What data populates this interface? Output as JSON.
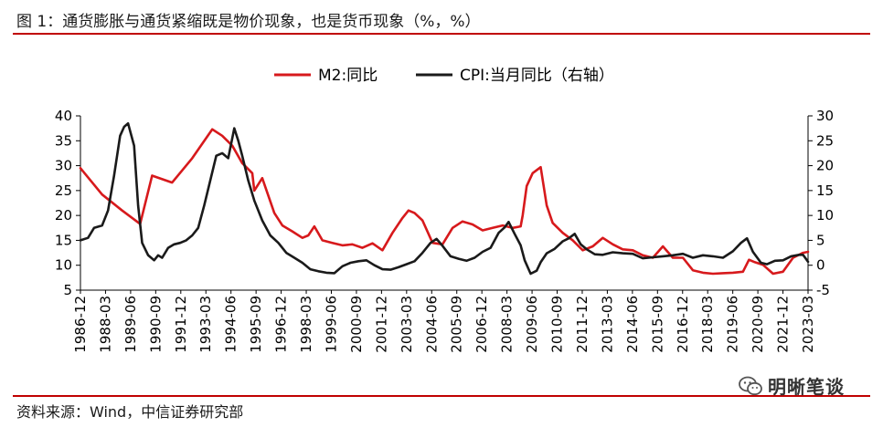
{
  "header": {
    "title": "图 1：通货膨胀与通货紧缩既是物价现象，也是货币现象（%，%）"
  },
  "footer": {
    "source": "资料来源：Wind，中信证券研究部",
    "watermark": "明晰笔谈",
    "watermark_icon": "wechat-icon"
  },
  "chart_data": {
    "type": "line",
    "y_left_lim": [
      5,
      40
    ],
    "y_right_lim": [
      -5,
      30
    ],
    "y_left_ticks": [
      "5",
      "10",
      "15",
      "20",
      "25",
      "30",
      "35",
      "40"
    ],
    "y_right_ticks": [
      "-5",
      "0",
      "5",
      "10",
      "15",
      "20",
      "25",
      "30"
    ],
    "x_tick_labels": [
      "1986-12",
      "1988-03",
      "1989-06",
      "1990-09",
      "1991-12",
      "1993-03",
      "1994-06",
      "1995-09",
      "1996-12",
      "1998-03",
      "1999-06",
      "2000-09",
      "2001-12",
      "2003-03",
      "2004-06",
      "2005-09",
      "2006-12",
      "2008-03",
      "2009-06",
      "2010-09",
      "2011-12",
      "2013-03",
      "2014-06",
      "2015-09",
      "2016-12",
      "2018-03",
      "2019-06",
      "2020-09",
      "2021-12",
      "2023-03"
    ],
    "x_range": [
      1986.92,
      2023.25
    ],
    "legend": {
      "placement": "top-center"
    },
    "series": [
      {
        "name": "M2:同比",
        "axis": "left",
        "color": "#d7191c",
        "x": [
          1986.92,
          1988.0,
          1989.0,
          1989.9,
          1990.5,
          1991.5,
          1992.5,
          1993.5,
          1994.0,
          1994.5,
          1995.0,
          1995.5,
          1995.6,
          1996.0,
          1996.3,
          1996.6,
          1997.0,
          1997.5,
          1998.0,
          1998.3,
          1998.6,
          1999.0,
          1999.5,
          2000.0,
          2000.5,
          2001.0,
          2001.5,
          2002.0,
          2002.5,
          2003.0,
          2003.3,
          2003.6,
          2004.0,
          2004.5,
          2005.0,
          2005.5,
          2006.0,
          2006.5,
          2007.0,
          2007.5,
          2008.0,
          2008.5,
          2008.9,
          2009.0,
          2009.2,
          2009.5,
          2009.9,
          2010.2,
          2010.5,
          2011.0,
          2011.5,
          2012.0,
          2012.5,
          2013.0,
          2013.5,
          2014.0,
          2014.5,
          2015.0,
          2015.5,
          2016.0,
          2016.5,
          2017.0,
          2017.5,
          2018.0,
          2018.5,
          2019.0,
          2019.5,
          2020.0,
          2020.3,
          2020.6,
          2021.0,
          2021.5,
          2022.0,
          2022.5,
          2023.0,
          2023.25
        ],
        "values": [
          29.5,
          24.2,
          21.0,
          18.3,
          28.0,
          26.6,
          31.5,
          37.3,
          36.0,
          34.0,
          30.5,
          28.5,
          25.0,
          27.5,
          24.0,
          20.5,
          18.0,
          16.8,
          15.5,
          16.0,
          17.8,
          15.0,
          14.5,
          14.0,
          14.2,
          13.5,
          14.4,
          13.0,
          16.5,
          19.5,
          21.0,
          20.5,
          19.0,
          14.5,
          14.2,
          17.5,
          18.8,
          18.2,
          17.0,
          17.5,
          18.0,
          17.5,
          17.8,
          20.0,
          25.9,
          28.5,
          29.7,
          22.0,
          18.5,
          16.5,
          15.0,
          13.0,
          13.8,
          15.5,
          14.2,
          13.2,
          13.0,
          12.0,
          11.5,
          13.8,
          11.5,
          11.5,
          9.0,
          8.5,
          8.3,
          8.4,
          8.5,
          8.7,
          11.1,
          10.6,
          10.1,
          8.3,
          8.7,
          11.5,
          12.5,
          12.7
        ]
      },
      {
        "name": "CPI:当月同比（右轴）",
        "axis": "right",
        "color": "#1a1a1a",
        "x": [
          1986.92,
          1987.3,
          1987.6,
          1988.0,
          1988.3,
          1988.6,
          1988.9,
          1989.1,
          1989.3,
          1989.6,
          1989.8,
          1990.0,
          1990.3,
          1990.6,
          1990.8,
          1991.0,
          1991.3,
          1991.6,
          1991.9,
          1992.2,
          1992.5,
          1992.8,
          1993.1,
          1993.4,
          1993.7,
          1994.0,
          1994.3,
          1994.6,
          1994.8,
          1995.0,
          1995.3,
          1995.6,
          1996.0,
          1996.4,
          1996.8,
          1997.2,
          1997.6,
          1998.0,
          1998.4,
          1998.8,
          1999.2,
          1999.6,
          2000.0,
          2000.4,
          2000.8,
          2001.2,
          2001.6,
          2002.0,
          2002.4,
          2002.8,
          2003.2,
          2003.6,
          2004.0,
          2004.4,
          2004.7,
          2005.0,
          2005.4,
          2005.8,
          2006.2,
          2006.6,
          2007.0,
          2007.4,
          2007.8,
          2008.1,
          2008.3,
          2008.6,
          2008.9,
          2009.1,
          2009.4,
          2009.7,
          2009.9,
          2010.2,
          2010.6,
          2011.0,
          2011.3,
          2011.6,
          2011.9,
          2012.2,
          2012.6,
          2013.0,
          2013.5,
          2014.0,
          2014.5,
          2015.0,
          2015.5,
          2016.0,
          2016.5,
          2017.0,
          2017.5,
          2018.0,
          2018.5,
          2019.0,
          2019.5,
          2019.9,
          2020.2,
          2020.5,
          2020.9,
          2021.2,
          2021.6,
          2022.0,
          2022.4,
          2022.8,
          2023.0,
          2023.25
        ],
        "values": [
          5.0,
          5.5,
          7.5,
          8.0,
          11.0,
          18.0,
          26.0,
          27.8,
          28.5,
          24.0,
          12.0,
          4.5,
          2.0,
          1.0,
          2.0,
          1.5,
          3.5,
          4.2,
          4.5,
          5.0,
          6.0,
          7.5,
          12.0,
          17.0,
          22.0,
          22.5,
          21.5,
          27.5,
          25.0,
          22.0,
          17.0,
          13.0,
          9.0,
          6.0,
          4.5,
          2.5,
          1.5,
          0.5,
          -0.8,
          -1.2,
          -1.5,
          -1.6,
          -0.2,
          0.5,
          0.8,
          1.0,
          0.0,
          -0.8,
          -0.9,
          -0.4,
          0.2,
          0.8,
          2.5,
          4.5,
          5.3,
          3.9,
          1.8,
          1.3,
          0.9,
          1.5,
          2.7,
          3.5,
          6.5,
          7.6,
          8.7,
          6.3,
          4.0,
          1.0,
          -1.7,
          -1.1,
          0.6,
          2.4,
          3.3,
          4.8,
          5.4,
          6.3,
          4.2,
          3.2,
          2.2,
          2.1,
          2.6,
          2.4,
          2.3,
          1.4,
          1.6,
          1.8,
          2.0,
          2.3,
          1.5,
          2.0,
          1.8,
          1.5,
          2.8,
          4.5,
          5.4,
          2.7,
          0.5,
          0.2,
          0.9,
          1.0,
          1.8,
          2.1,
          2.1,
          0.7
        ]
      }
    ]
  }
}
